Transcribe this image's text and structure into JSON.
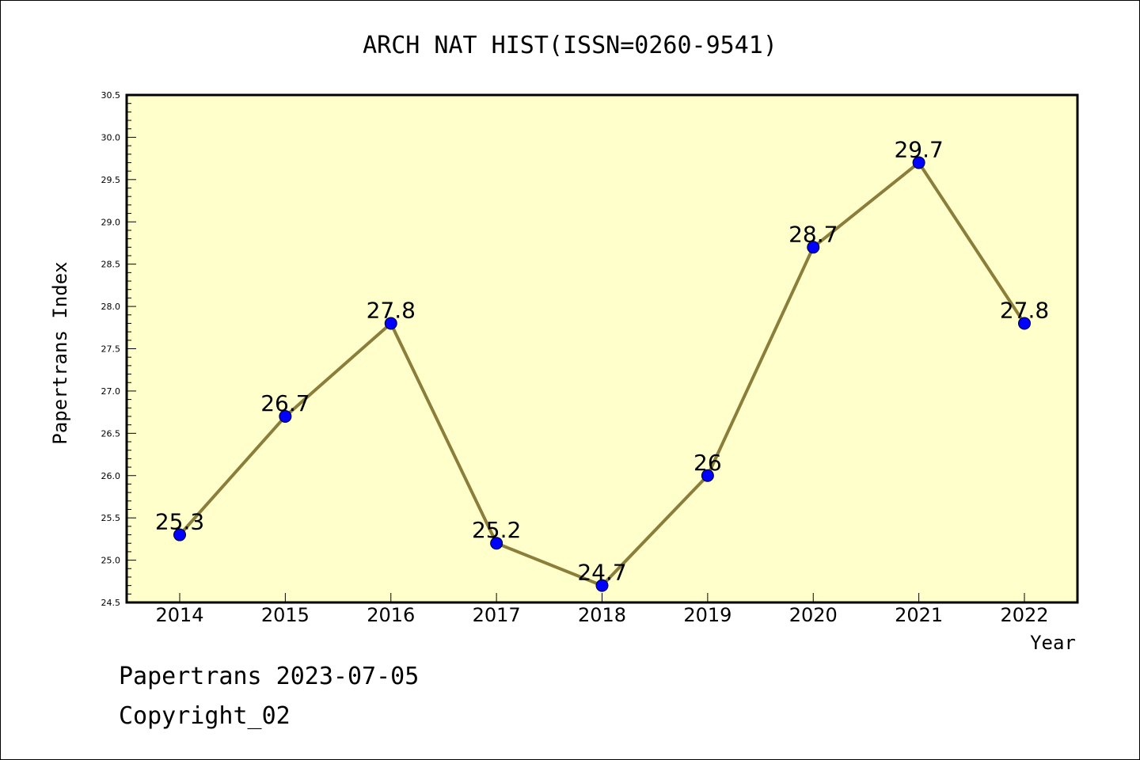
{
  "chart_data": {
    "type": "line",
    "title": "ARCH NAT HIST(ISSN=0260-9541)",
    "xlabel": "Year",
    "ylabel": "Papertrans Index",
    "x": [
      "2014",
      "2015",
      "2016",
      "2017",
      "2018",
      "2019",
      "2020",
      "2021",
      "2022"
    ],
    "series": [
      {
        "values": [
          25.3,
          26.7,
          27.8,
          25.2,
          24.7,
          26.0,
          28.7,
          29.7,
          27.8
        ],
        "labels": [
          "25.3",
          "26.7",
          "27.8",
          "25.2",
          "24.7",
          "26",
          "28.7",
          "29.7",
          "27.8"
        ]
      }
    ],
    "ylim": [
      24.5,
      30.5
    ],
    "yticks": [
      "24.5",
      "25.0",
      "25.5",
      "26.0",
      "26.5",
      "27.0",
      "27.5",
      "28.0",
      "28.5",
      "29.0",
      "29.5",
      "30.0",
      "30.5"
    ],
    "grid": false,
    "colors": {
      "plot_background": "#ffffcc",
      "line": "#8b7d3a",
      "marker": "#0000ff"
    }
  },
  "footer": {
    "line1": "Papertrans 2023-07-05",
    "line2": "Copyright_02"
  }
}
